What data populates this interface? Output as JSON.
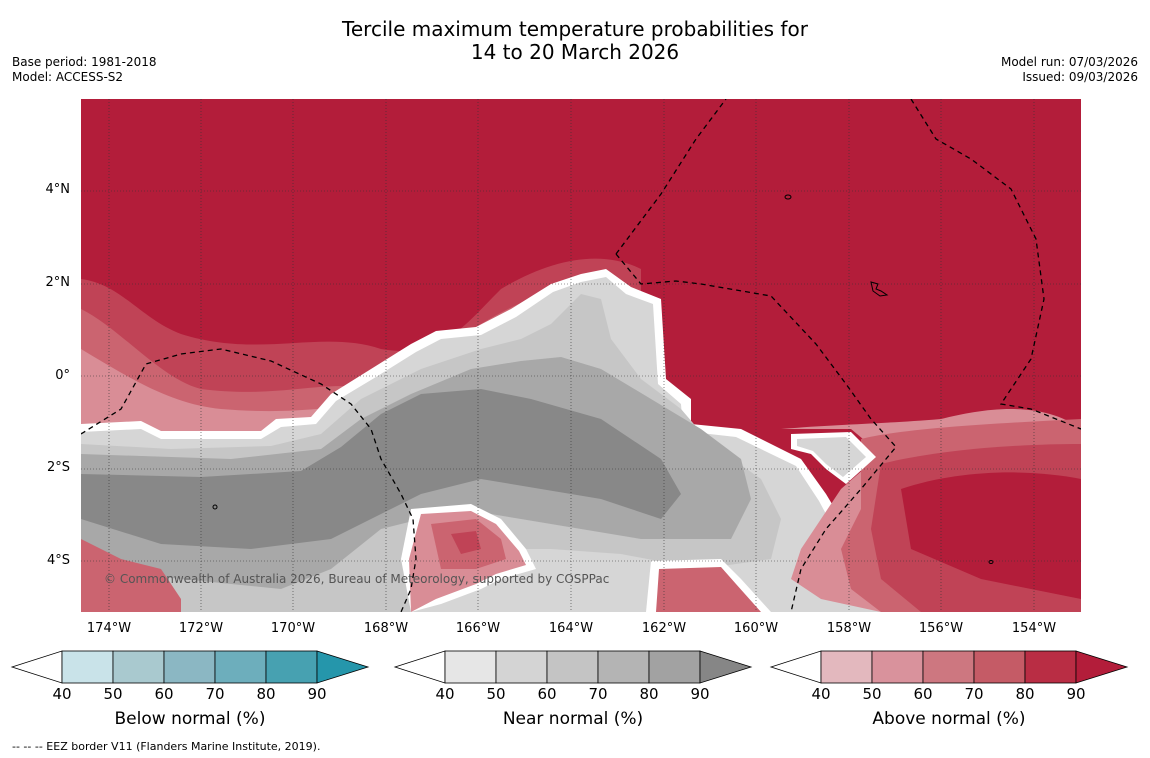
{
  "title": {
    "line1": "Tercile maximum temperature probabilities for",
    "line2": "14 to 20 March 2026"
  },
  "meta_left": {
    "base_period": "Base period: 1981-2018",
    "model": "Model: ACCESS-S2"
  },
  "meta_right": {
    "model_run": "Model run: 07/03/2026",
    "issued": "Issued: 09/03/2026"
  },
  "map": {
    "lat_labels": [
      "4°N",
      "2°N",
      "0°",
      "2°S",
      "4°S"
    ],
    "lon_labels": [
      "174°W",
      "172°W",
      "170°W",
      "168°W",
      "166°W",
      "164°W",
      "162°W",
      "160°W",
      "158°W",
      "156°W",
      "154°W"
    ],
    "copyright": "© Commonwealth of Australia 2026, Bureau of Meteorology, supported by COSPPac"
  },
  "colorbars": [
    {
      "title": "Below normal (%)",
      "ticks": [
        "40",
        "50",
        "60",
        "70",
        "80",
        "90"
      ],
      "colors": [
        "#ffffff",
        "#c9e3e9",
        "#a9c9cf",
        "#8bb7c3",
        "#6daebc",
        "#47a1b1",
        "#2596ab"
      ]
    },
    {
      "title": "Near normal (%)",
      "ticks": [
        "40",
        "50",
        "60",
        "70",
        "80",
        "90"
      ],
      "colors": [
        "#ffffff",
        "#e6e6e6",
        "#d4d4d4",
        "#c4c4c4",
        "#b4b4b4",
        "#a2a2a2",
        "#868686"
      ]
    },
    {
      "title": "Above normal (%)",
      "ticks": [
        "40",
        "50",
        "60",
        "70",
        "80",
        "90"
      ],
      "colors": [
        "#ffffff",
        "#e3b8be",
        "#d9929c",
        "#cd7780",
        "#c55b66",
        "#b92d44",
        "#b31d3a"
      ]
    }
  ],
  "footnote": "--  --  -- EEZ border V11 (Flanders Marine Institute, 2019).",
  "colors": {
    "above_80": "#b31d3a",
    "above_70": "#c04356",
    "above_60": "#cb6470",
    "above_50": "#d98d96",
    "near_50": "#d6d6d6",
    "near_60": "#c6c6c6",
    "near_70": "#a8a8a8",
    "near_80": "#888888"
  }
}
